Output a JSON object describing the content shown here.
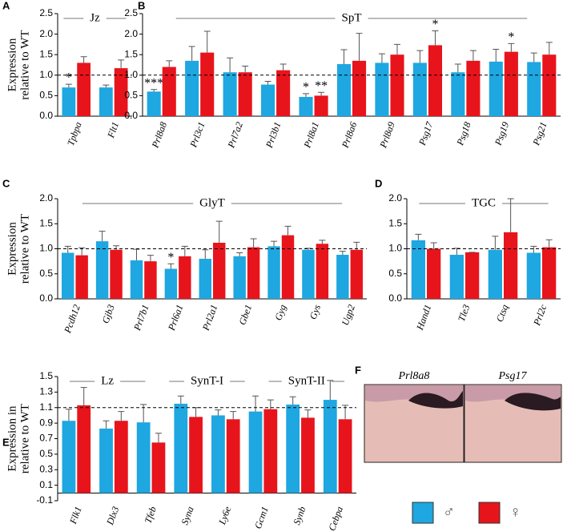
{
  "chart_data": [
    {
      "type": "bar",
      "panel_label": "A",
      "group_labels": [
        "Jz"
      ],
      "y_label": [
        "Expression",
        "relative to WT"
      ],
      "categories": [
        "Tpbpa",
        "Flt1"
      ],
      "series": [
        {
          "name": "♂",
          "color": "#1ea7e0",
          "values": [
            0.7,
            0.7
          ],
          "errors": [
            0.08,
            0.06
          ],
          "annotations": [
            "*",
            null
          ]
        },
        {
          "name": "♀",
          "color": "#e8141c",
          "values": [
            1.3,
            1.17
          ],
          "errors": [
            0.15,
            0.2
          ],
          "annotations": [
            null,
            null
          ]
        }
      ],
      "ylim": [
        0,
        2.5
      ],
      "yticks": [
        {
          "value": 0,
          "label": "0.0"
        },
        {
          "value": 0.5,
          "label": "0.5"
        },
        {
          "value": 1,
          "label": "1.0"
        },
        {
          "value": 1.5,
          "label": "1.5"
        },
        {
          "value": 2,
          "label": "2.0"
        },
        {
          "value": 2.5,
          "label": "2.5"
        }
      ],
      "reference_line": 1
    },
    {
      "type": "bar",
      "panel_label": "B",
      "group_labels": [
        "SpT"
      ],
      "categories": [
        "Prl8a8",
        "Prl3c1",
        "Prl7a2",
        "Prl3b1",
        "Prl8a1",
        "Prl8a6",
        "Prl8a9",
        "Psg17",
        "Psg18",
        "Psg19",
        "Psg21"
      ],
      "series": [
        {
          "name": "♂",
          "color": "#1ea7e0",
          "values": [
            0.6,
            1.35,
            1.07,
            0.77,
            0.47,
            1.27,
            1.3,
            1.3,
            1.07,
            1.33,
            1.32
          ],
          "errors": [
            0.05,
            0.35,
            0.35,
            0.08,
            0.08,
            0.35,
            0.22,
            0.3,
            0.2,
            0.3,
            0.22
          ],
          "annotations": [
            "***",
            null,
            null,
            null,
            "*",
            null,
            null,
            null,
            null,
            null,
            null
          ]
        },
        {
          "name": "♀",
          "color": "#e8141c",
          "values": [
            1.2,
            1.55,
            1.07,
            1.12,
            0.5,
            1.35,
            1.5,
            1.73,
            1.35,
            1.57,
            1.5
          ],
          "errors": [
            0.15,
            0.52,
            0.15,
            0.15,
            0.08,
            0.67,
            0.25,
            0.35,
            0.25,
            0.2,
            0.3
          ],
          "annotations": [
            null,
            null,
            null,
            null,
            "**",
            null,
            null,
            "*",
            null,
            "*",
            null
          ]
        }
      ],
      "ylim": [
        0,
        2.5
      ],
      "yticks": [
        {
          "value": 0,
          "label": "0.0"
        },
        {
          "value": 0.5,
          "label": "0.5"
        },
        {
          "value": 1,
          "label": "1.0"
        },
        {
          "value": 1.5,
          "label": "1.5"
        },
        {
          "value": 2,
          "label": "2.0"
        },
        {
          "value": 2.5,
          "label": "2.5"
        }
      ],
      "reference_line": 1
    },
    {
      "type": "bar",
      "panel_label": "C",
      "group_labels": [
        "GlyT"
      ],
      "y_label": [
        "Expression",
        "relative to WT"
      ],
      "categories": [
        "Pcdh12",
        "Gjb3",
        "Prl7b1",
        "Prl6a1",
        "Prl2a1",
        "Gbe1",
        "Gyg",
        "Gys",
        "Ugp2"
      ],
      "series": [
        {
          "name": "♂",
          "color": "#1ea7e0",
          "values": [
            0.92,
            1.15,
            0.77,
            0.6,
            0.8,
            0.85,
            1.05,
            0.98,
            0.88
          ],
          "errors": [
            0.13,
            0.2,
            0.22,
            0.1,
            0.18,
            0.07,
            0.1,
            0.03,
            0.07
          ],
          "annotations": [
            null,
            null,
            null,
            "*",
            null,
            null,
            null,
            null,
            null
          ]
        },
        {
          "name": "♀",
          "color": "#e8141c",
          "values": [
            0.87,
            0.98,
            0.75,
            0.85,
            1.12,
            1.03,
            1.27,
            1.1,
            0.98
          ],
          "errors": [
            0.15,
            0.08,
            0.12,
            0.2,
            0.43,
            0.17,
            0.18,
            0.07,
            0.15
          ],
          "annotations": [
            null,
            null,
            null,
            null,
            null,
            null,
            null,
            null,
            null
          ]
        }
      ],
      "ylim": [
        0,
        2
      ],
      "yticks": [
        {
          "value": 0,
          "label": "0.0"
        },
        {
          "value": 0.5,
          "label": "0.5"
        },
        {
          "value": 1,
          "label": "1.0"
        },
        {
          "value": 1.5,
          "label": "1.5"
        },
        {
          "value": 2,
          "label": "2.0"
        }
      ],
      "reference_line": 1
    },
    {
      "type": "bar",
      "panel_label": "D",
      "group_labels": [
        "TGC"
      ],
      "categories": [
        "Hand1",
        "Tle3",
        "Ctsq",
        "Prl2c"
      ],
      "series": [
        {
          "name": "♂",
          "color": "#1ea7e0",
          "values": [
            1.17,
            0.88,
            0.98,
            0.92
          ],
          "errors": [
            0.12,
            0.13,
            0.27,
            0.13
          ],
          "annotations": [
            null,
            null,
            null,
            null
          ]
        },
        {
          "name": "♀",
          "color": "#e8141c",
          "values": [
            1.0,
            0.93,
            1.33,
            1.03
          ],
          "errors": [
            0.12,
            0,
            0.67,
            0.15
          ],
          "annotations": [
            null,
            null,
            null,
            null
          ]
        }
      ],
      "ylim": [
        0,
        2
      ],
      "yticks": [
        {
          "value": 0,
          "label": "0.0"
        },
        {
          "value": 0.5,
          "label": "0.5"
        },
        {
          "value": 1,
          "label": "1.0"
        },
        {
          "value": 1.5,
          "label": "1.5"
        },
        {
          "value": 2,
          "label": "2.0"
        }
      ],
      "reference_line": 1
    },
    {
      "type": "bar",
      "panel_label": "E",
      "group_labels": [
        "Lz",
        "SynT-I",
        "SynT-II"
      ],
      "y_label": [
        "Expression in",
        "relative to WT"
      ],
      "categories": [
        "Flk1",
        "Dlx3",
        "Tfeb",
        "Syna",
        "Ly6e",
        "Gcm1",
        "Synb",
        "Cebpa"
      ],
      "series": [
        {
          "name": "♂",
          "color": "#1ea7e0",
          "values": [
            0.93,
            0.83,
            0.91,
            1.15,
            1.0,
            1.05,
            1.14,
            1.2
          ],
          "errors": [
            0.15,
            0.1,
            0.23,
            0.1,
            0.07,
            0.2,
            0.1,
            0.25
          ],
          "annotations": [
            null,
            null,
            null,
            null,
            null,
            null,
            null,
            null
          ]
        },
        {
          "name": "♀",
          "color": "#e8141c",
          "values": [
            1.13,
            0.93,
            0.65,
            0.98,
            0.95,
            1.08,
            0.97,
            0.95
          ],
          "errors": [
            0.23,
            0.12,
            0.12,
            0.12,
            0.1,
            0.12,
            0.1,
            0.18
          ],
          "annotations": [
            null,
            null,
            null,
            null,
            null,
            null,
            null,
            null
          ]
        }
      ],
      "ylim": [
        -0.1,
        1.5
      ],
      "yticks": [
        -0.1,
        0.1,
        0.3,
        0.5,
        0.7,
        0.9,
        1.1,
        1.3,
        1.5
      ],
      "reference_line": 1.1
    }
  ],
  "image_panel": {
    "panel_label": "F",
    "captions": [
      "Prl8a8",
      "Psg17"
    ]
  }
}
